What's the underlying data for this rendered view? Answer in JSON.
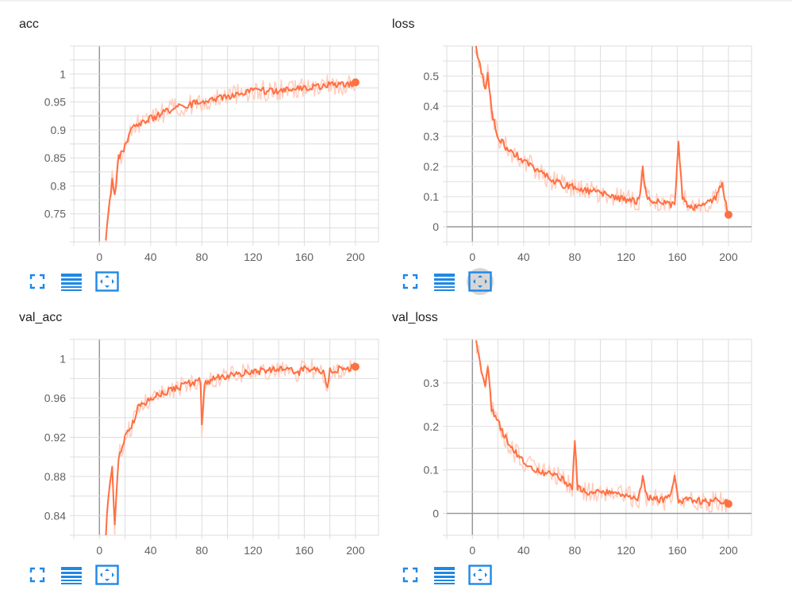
{
  "colors": {
    "accent": "#ff7043",
    "accent_light": "#ffcdbd",
    "icon": "#1e88e5",
    "grid": "#dddddd",
    "axis": "#999999"
  },
  "cards": [
    {
      "title": "acc",
      "toolbar": {
        "icons": [
          "fullscreen-icon",
          "data-series-icon",
          "fit-domain-icon"
        ],
        "active": ""
      },
      "chart_data": {
        "type": "line",
        "title": "acc",
        "x_ticks": [
          "0",
          "40",
          "80",
          "120",
          "160",
          "200"
        ],
        "y_ticks": [
          "0.75",
          "0.8",
          "0.85",
          "0.9",
          "0.95",
          "1"
        ],
        "xlim": [
          -20,
          218
        ],
        "ylim": [
          0.7,
          1.05
        ],
        "grid": true,
        "y_zero_line": false,
        "series": [
          {
            "smoothed_points": [
              [
                5,
                0.7
              ],
              [
                8,
                0.77
              ],
              [
                10,
                0.81
              ],
              [
                12,
                0.78
              ],
              [
                15,
                0.85
              ],
              [
                20,
                0.87
              ],
              [
                25,
                0.9
              ],
              [
                30,
                0.91
              ],
              [
                40,
                0.92
              ],
              [
                50,
                0.93
              ],
              [
                60,
                0.94
              ],
              [
                70,
                0.945
              ],
              [
                80,
                0.95
              ],
              [
                90,
                0.955
              ],
              [
                100,
                0.96
              ],
              [
                110,
                0.965
              ],
              [
                120,
                0.97
              ],
              [
                130,
                0.97
              ],
              [
                140,
                0.97
              ],
              [
                150,
                0.975
              ],
              [
                160,
                0.975
              ],
              [
                170,
                0.978
              ],
              [
                180,
                0.98
              ],
              [
                190,
                0.98
              ],
              [
                200,
                0.985
              ]
            ]
          }
        ]
      }
    },
    {
      "title": "loss",
      "toolbar": {
        "icons": [
          "fullscreen-icon",
          "data-series-icon",
          "fit-domain-icon"
        ],
        "active": "fit-domain-icon"
      },
      "chart_data": {
        "type": "line",
        "title": "loss",
        "x_ticks": [
          "0",
          "40",
          "80",
          "120",
          "160",
          "200"
        ],
        "y_ticks": [
          "0",
          "0.1",
          "0.2",
          "0.3",
          "0.4",
          "0.5"
        ],
        "xlim": [
          -20,
          218
        ],
        "ylim": [
          -0.05,
          0.6
        ],
        "grid": true,
        "y_zero_line": true,
        "series": [
          {
            "smoothed_points": [
              [
                2,
                0.62
              ],
              [
                5,
                0.55
              ],
              [
                8,
                0.5
              ],
              [
                10,
                0.45
              ],
              [
                12,
                0.51
              ],
              [
                15,
                0.38
              ],
              [
                20,
                0.3
              ],
              [
                25,
                0.27
              ],
              [
                30,
                0.25
              ],
              [
                40,
                0.22
              ],
              [
                50,
                0.19
              ],
              [
                60,
                0.16
              ],
              [
                70,
                0.14
              ],
              [
                80,
                0.13
              ],
              [
                90,
                0.12
              ],
              [
                100,
                0.11
              ],
              [
                110,
                0.1
              ],
              [
                120,
                0.09
              ],
              [
                130,
                0.085
              ],
              [
                133,
                0.19
              ],
              [
                136,
                0.1
              ],
              [
                140,
                0.09
              ],
              [
                150,
                0.08
              ],
              [
                158,
                0.07
              ],
              [
                161,
                0.28
              ],
              [
                164,
                0.1
              ],
              [
                170,
                0.06
              ],
              [
                180,
                0.07
              ],
              [
                185,
                0.08
              ],
              [
                190,
                0.1
              ],
              [
                195,
                0.14
              ],
              [
                200,
                0.04
              ]
            ]
          }
        ]
      }
    },
    {
      "title": "val_acc",
      "toolbar": {
        "icons": [
          "fullscreen-icon",
          "data-series-icon",
          "fit-domain-icon"
        ],
        "active": ""
      },
      "chart_data": {
        "type": "line",
        "title": "val_acc",
        "x_ticks": [
          "0",
          "40",
          "80",
          "120",
          "160",
          "200"
        ],
        "y_ticks": [
          "0.84",
          "0.88",
          "0.92",
          "0.96",
          "1"
        ],
        "xlim": [
          -20,
          218
        ],
        "ylim": [
          0.82,
          1.02
        ],
        "grid": true,
        "y_zero_line": false,
        "series": [
          {
            "smoothed_points": [
              [
                5,
                0.82
              ],
              [
                7,
                0.86
              ],
              [
                10,
                0.89
              ],
              [
                12,
                0.83
              ],
              [
                15,
                0.9
              ],
              [
                20,
                0.92
              ],
              [
                25,
                0.93
              ],
              [
                30,
                0.95
              ],
              [
                40,
                0.96
              ],
              [
                50,
                0.965
              ],
              [
                60,
                0.97
              ],
              [
                70,
                0.975
              ],
              [
                79,
                0.978
              ],
              [
                80,
                0.93
              ],
              [
                82,
                0.975
              ],
              [
                90,
                0.98
              ],
              [
                100,
                0.982
              ],
              [
                110,
                0.985
              ],
              [
                120,
                0.987
              ],
              [
                130,
                0.988
              ],
              [
                140,
                0.99
              ],
              [
                150,
                0.99
              ],
              [
                155,
                0.985
              ],
              [
                160,
                0.99
              ],
              [
                170,
                0.99
              ],
              [
                175,
                0.985
              ],
              [
                178,
                0.97
              ],
              [
                180,
                0.988
              ],
              [
                190,
                0.99
              ],
              [
                200,
                0.992
              ]
            ]
          }
        ]
      }
    },
    {
      "title": "val_loss",
      "toolbar": {
        "icons": [
          "fullscreen-icon",
          "data-series-icon",
          "fit-domain-icon"
        ],
        "active": ""
      },
      "chart_data": {
        "type": "line",
        "title": "val_loss",
        "x_ticks": [
          "0",
          "40",
          "80",
          "120",
          "160",
          "200"
        ],
        "y_ticks": [
          "0",
          "0.1",
          "0.2",
          "0.3"
        ],
        "xlim": [
          -20,
          218
        ],
        "ylim": [
          -0.05,
          0.4
        ],
        "grid": true,
        "y_zero_line": true,
        "series": [
          {
            "smoothed_points": [
              [
                3,
                0.39
              ],
              [
                6,
                0.35
              ],
              [
                8,
                0.31
              ],
              [
                10,
                0.3
              ],
              [
                12,
                0.34
              ],
              [
                15,
                0.24
              ],
              [
                20,
                0.21
              ],
              [
                25,
                0.18
              ],
              [
                30,
                0.15
              ],
              [
                40,
                0.12
              ],
              [
                50,
                0.1
              ],
              [
                60,
                0.09
              ],
              [
                70,
                0.08
              ],
              [
                78,
                0.06
              ],
              [
                80,
                0.17
              ],
              [
                82,
                0.06
              ],
              [
                90,
                0.05
              ],
              [
                100,
                0.05
              ],
              [
                110,
                0.045
              ],
              [
                120,
                0.04
              ],
              [
                130,
                0.035
              ],
              [
                133,
                0.08
              ],
              [
                136,
                0.04
              ],
              [
                140,
                0.035
              ],
              [
                150,
                0.03
              ],
              [
                155,
                0.04
              ],
              [
                158,
                0.08
              ],
              [
                161,
                0.03
              ],
              [
                170,
                0.03
              ],
              [
                180,
                0.028
              ],
              [
                185,
                0.025
              ],
              [
                190,
                0.03
              ],
              [
                195,
                0.027
              ],
              [
                200,
                0.022
              ]
            ]
          }
        ]
      }
    }
  ]
}
